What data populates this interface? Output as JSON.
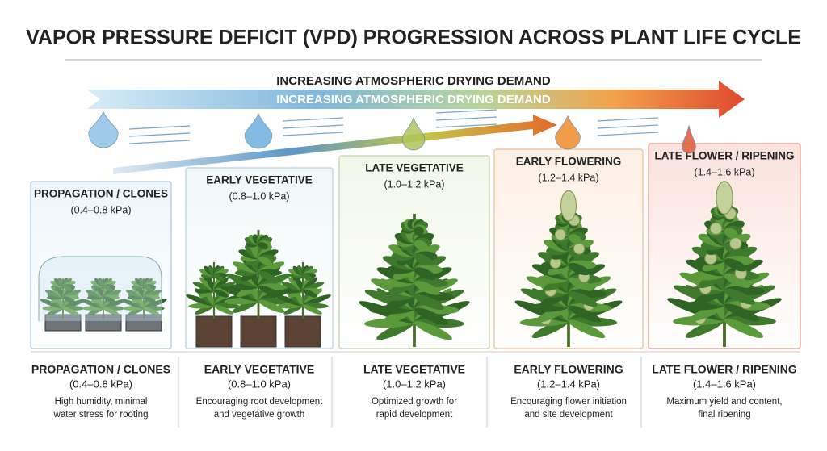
{
  "header": {
    "title": "VAPOR PRESSURE DEFICIT (VPD) PROGRESSION ACROSS PLANT LIFE CYCLE"
  },
  "arrow": {
    "label": "INCREASING ATMOSPHERIC DRYING DEMAND"
  },
  "stages": [
    {
      "name": "PROPAGATION / CLONES",
      "range": "(0.4–0.8 kPa)",
      "description": [
        "High humidity, minimal",
        "water stress for rooting"
      ]
    },
    {
      "name": "EARLY VEGETATIVE",
      "range": "(0.8–1.0 kPa)",
      "description": [
        "Encouraging root development",
        "and vegetative growth"
      ]
    },
    {
      "name": "LATE VEGETATIVE",
      "range": "(1.0–1.2 kPa)",
      "description": [
        "Optimized growth for",
        "rapid development"
      ]
    },
    {
      "name": "EARLY FLOWERING",
      "range": "(1.2–1.4 kPa)",
      "description": [
        "Encouraging flower initiation",
        "and site development"
      ]
    },
    {
      "name": "LATE FLOWER / RIPENING",
      "range": "(1.4–1.6 kPa)",
      "description": [
        "Maximum yield and content,",
        "final ripening"
      ]
    }
  ]
}
